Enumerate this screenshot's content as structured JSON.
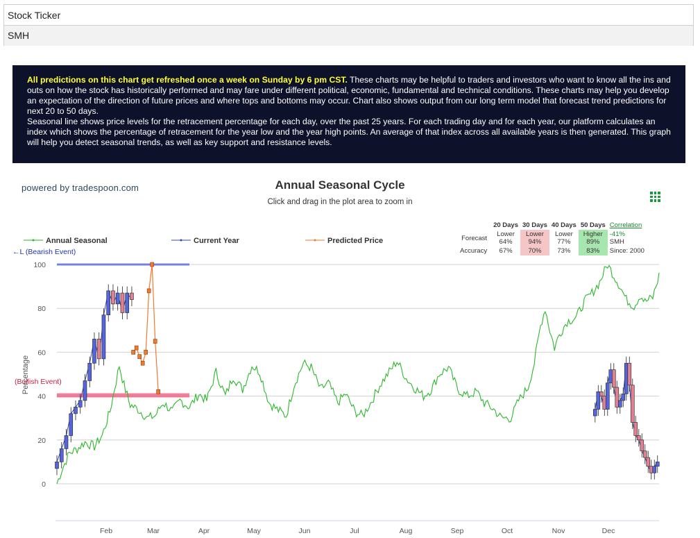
{
  "ticker": {
    "label": "Stock Ticker",
    "value": "SMH"
  },
  "info": {
    "highlight": "All predictions on this chart get refreshed once a week on Sunday by 6 pm CST.",
    "text1": " These charts may be helpful to traders and investors who want to know all the ins and outs on how the stock has historically performed and may fare under different political, economic, fundamental and technical conditions. These charts may help you develop an expectation of the direction of future prices and where tops and bottoms may occur. Chart also shows output from our long term model that forecast trend predictions for next 20 to 50 days.",
    "text2": "Seasonal line shows price levels for the retracement percentage for each day, over the past 25 years. For each trading day and for each year, our platform calculates an index which shows the percentage of retracement for the year low and the year high points. An average of that index across all available years is then generated. This graph will help you detect seasonal trends, as well as key support and resistance levels."
  },
  "powered_by": "powered by tradespoon.com",
  "stats": {
    "headers": [
      "20 Days",
      "30 Days",
      "40 Days",
      "50 Days"
    ],
    "forecast_label": "Forecast",
    "accuracy_label": "Accuracy",
    "forecast": [
      [
        "Lower",
        "64%"
      ],
      [
        "Lower",
        "94%"
      ],
      [
        "Lower",
        "77%"
      ],
      [
        "Higher",
        "89%"
      ]
    ],
    "accuracy": [
      "67%",
      "70%",
      "73%",
      "83%"
    ],
    "correlation_label": "Correlation",
    "correlation_value": "-41%",
    "symbol": "SMH",
    "since": "Since: 2000"
  },
  "chart_data": {
    "type": "line",
    "title": "Annual Seasonal Cycle",
    "subtitle": "Click and drag in the plot area to zoom in",
    "ylabel": "Percentage",
    "ylim": [
      0,
      100
    ],
    "yticks": [
      0,
      20,
      40,
      60,
      80,
      100
    ],
    "xticks": [
      "Feb",
      "Mar",
      "Apr",
      "May",
      "Jun",
      "Jul",
      "Aug",
      "Sep",
      "Oct",
      "Nov",
      "Dec"
    ],
    "legend": [
      "Annual Seasonal",
      "Current Year",
      "Predicted Price"
    ],
    "colors": {
      "seasonal": "#2ab82a",
      "current": "#3344bb",
      "predicted": "#f07a30",
      "bearish": "#5566ee",
      "bullish": "#ee5577"
    },
    "bearish_label": "←L (Bearish Event)",
    "bullish_label": "(Bullish Event)",
    "bearish_level": 100,
    "bullish_level": 41,
    "seasonal_anchors": [
      [
        0,
        0
      ],
      [
        3,
        6
      ],
      [
        8,
        14
      ],
      [
        13,
        16
      ],
      [
        18,
        19
      ],
      [
        24,
        17
      ],
      [
        29,
        22
      ],
      [
        34,
        33
      ],
      [
        38,
        47
      ],
      [
        40,
        54
      ],
      [
        43,
        45
      ],
      [
        47,
        36
      ],
      [
        52,
        34
      ],
      [
        58,
        30
      ],
      [
        63,
        31
      ],
      [
        68,
        37
      ],
      [
        74,
        33
      ],
      [
        79,
        38
      ],
      [
        85,
        35
      ],
      [
        91,
        41
      ],
      [
        96,
        38
      ],
      [
        102,
        51
      ],
      [
        108,
        40
      ],
      [
        113,
        49
      ],
      [
        119,
        43
      ],
      [
        125,
        54
      ],
      [
        130,
        51
      ],
      [
        136,
        37
      ],
      [
        141,
        34
      ],
      [
        147,
        31
      ],
      [
        152,
        45
      ],
      [
        158,
        55
      ],
      [
        163,
        53
      ],
      [
        169,
        43
      ],
      [
        174,
        46
      ],
      [
        180,
        37
      ],
      [
        185,
        41
      ],
      [
        191,
        33
      ],
      [
        196,
        31
      ],
      [
        202,
        38
      ],
      [
        207,
        45
      ],
      [
        213,
        51
      ],
      [
        218,
        56
      ],
      [
        224,
        48
      ],
      [
        229,
        44
      ],
      [
        235,
        40
      ],
      [
        240,
        43
      ],
      [
        245,
        50
      ],
      [
        251,
        53
      ],
      [
        257,
        43
      ],
      [
        263,
        40
      ],
      [
        269,
        42
      ],
      [
        274,
        37
      ],
      [
        280,
        34
      ],
      [
        285,
        30
      ],
      [
        291,
        30
      ],
      [
        296,
        38
      ],
      [
        302,
        44
      ],
      [
        306,
        55
      ],
      [
        310,
        72
      ],
      [
        313,
        80
      ],
      [
        316,
        70
      ],
      [
        319,
        62
      ],
      [
        322,
        68
      ],
      [
        327,
        74
      ],
      [
        333,
        76
      ],
      [
        338,
        83
      ],
      [
        343,
        87
      ],
      [
        348,
        92
      ],
      [
        351,
        97
      ],
      [
        353,
        100
      ],
      [
        357,
        95
      ],
      [
        361,
        90
      ],
      [
        365,
        84
      ],
      [
        370,
        81
      ],
      [
        374,
        86
      ],
      [
        377,
        83
      ],
      [
        382,
        85
      ],
      [
        386,
        95
      ]
    ],
    "current_year": [
      [
        0,
        10
      ],
      [
        3,
        16
      ],
      [
        6,
        22
      ],
      [
        9,
        32
      ],
      [
        12,
        35
      ],
      [
        15,
        38
      ],
      [
        18,
        47
      ],
      [
        21,
        55
      ],
      [
        24,
        66
      ],
      [
        27,
        57
      ],
      [
        30,
        77
      ],
      [
        33,
        88
      ],
      [
        36,
        82
      ],
      [
        39,
        87
      ],
      [
        42,
        78
      ],
      [
        45,
        87
      ],
      [
        48,
        84
      ]
    ],
    "dec_year": [
      [
        345,
        34
      ],
      [
        347,
        42
      ],
      [
        349,
        40
      ],
      [
        351,
        34
      ],
      [
        353,
        46
      ],
      [
        355,
        52
      ],
      [
        357,
        44
      ],
      [
        359,
        35
      ],
      [
        361,
        38
      ],
      [
        363,
        41
      ],
      [
        365,
        55
      ],
      [
        367,
        45
      ],
      [
        369,
        28
      ],
      [
        371,
        22
      ],
      [
        373,
        20
      ],
      [
        375,
        15
      ],
      [
        377,
        12
      ],
      [
        379,
        8
      ],
      [
        381,
        5
      ],
      [
        383,
        8
      ],
      [
        385,
        10
      ]
    ],
    "predicted": [
      [
        49,
        60
      ],
      [
        51,
        62
      ],
      [
        53,
        58
      ],
      [
        55,
        55
      ],
      [
        57,
        60
      ],
      [
        59,
        88
      ],
      [
        61,
        100
      ],
      [
        63,
        65
      ],
      [
        65,
        42
      ]
    ]
  }
}
